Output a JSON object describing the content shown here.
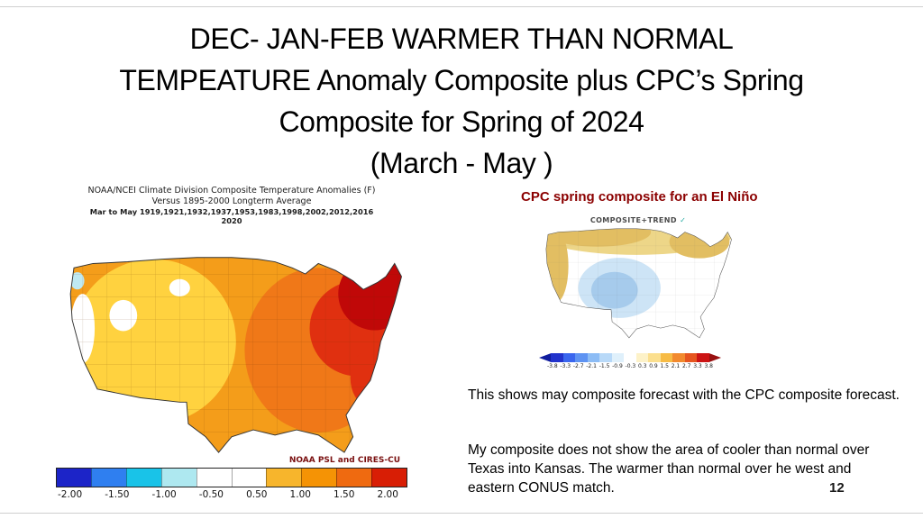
{
  "slide": {
    "title_lines": [
      "DEC- JAN-FEB WARMER THAN NORMAL",
      "TEMPEATURE Anomaly Composite plus CPC’s Spring",
      "Composite for Spring of 2024",
      "(March - May )"
    ],
    "page_number": "12"
  },
  "left_map": {
    "header_line1": "NOAA/NCEI Climate Division Composite Temperature Anomalies (F)",
    "header_line2": "Versus 1895-2000 Longterm Average",
    "header_line3": "Mar to May  1919,1921,1932,1937,1953,1983,1998,2002,2012,2016",
    "header_line4": "2020",
    "credit": "NOAA PSL and CIRES-CU",
    "colorbar": {
      "colors": [
        "#1c24c8",
        "#2f7ff0",
        "#19c3e8",
        "#aee8f0",
        "#ffffff",
        "#ffffff",
        "#f7b52c",
        "#f59305",
        "#ef6a10",
        "#d81e05"
      ],
      "tick_labels": [
        "-2.00",
        "-1.50",
        "-1.00",
        "-0.50",
        "0.50",
        "1.00",
        "1.50",
        "2.00"
      ]
    }
  },
  "right_panel": {
    "heading": "CPC spring composite for  an El Niño",
    "map_label": "COMPOSITE+TREND",
    "check_mark": "✓",
    "colorbar": {
      "colors": [
        "#101d9e",
        "#2233cc",
        "#3a66ee",
        "#5e93f2",
        "#8cbcf5",
        "#b8d9f8",
        "#dff0fb",
        "#ffffff",
        "#fdf2c8",
        "#fbdf8e",
        "#f7bb45",
        "#f28a2e",
        "#e6551f",
        "#cc1414",
        "#991010"
      ],
      "tick_labels": [
        "-3.8",
        "-3.3",
        "-2.7",
        "-2.1",
        "-1.5",
        "-0.9",
        "-0.3",
        "0.3",
        "0.9",
        "1.5",
        "2.1",
        "2.7",
        "3.3",
        "3.8"
      ]
    },
    "para1": "This shows may composite forecast with the CPC composite forecast.",
    "para2": "My composite does not show the area of cooler than normal over Texas into Kansas.  The warmer than normal over he west and eastern CONUS match."
  }
}
